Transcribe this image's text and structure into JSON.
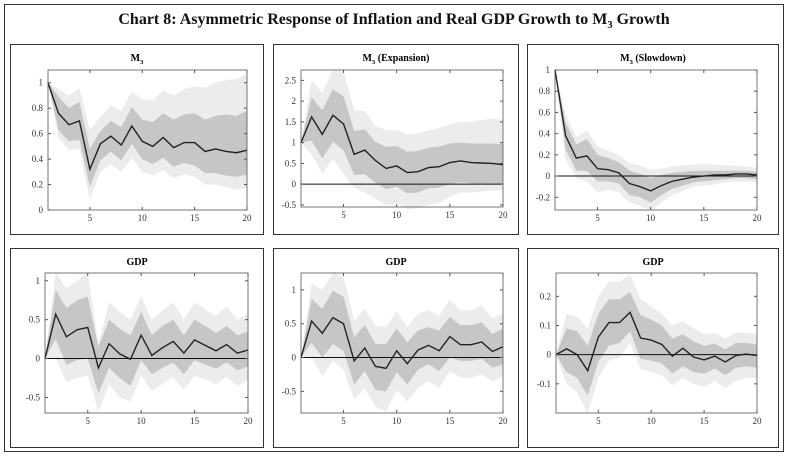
{
  "title": {
    "main": "Chart 8: Asymmetric Response of Inflation and Real GDP Growth to M",
    "sub": "3",
    "rest": " Growth"
  },
  "colors": {
    "outer_band": "#ececec",
    "inner_band": "#c6c6c8",
    "median": "#222222",
    "zero_line": "#111111"
  },
  "chart_data": [
    {
      "type": "line",
      "title": {
        "main": "M",
        "sub": "3",
        "rest": ""
      },
      "x": [
        1,
        2,
        3,
        4,
        5,
        6,
        7,
        8,
        9,
        10,
        11,
        12,
        13,
        14,
        15,
        16,
        17,
        18,
        19,
        20
      ],
      "xlim": [
        1,
        20
      ],
      "xticks": [
        5,
        10,
        15,
        20
      ],
      "ylim": [
        0,
        1.1
      ],
      "yticks": [
        0,
        0.2,
        0.4,
        0.6,
        0.8,
        1
      ],
      "zero_line": false,
      "median": [
        1,
        0.76,
        0.67,
        0.7,
        0.32,
        0.52,
        0.58,
        0.51,
        0.66,
        0.54,
        0.5,
        0.57,
        0.49,
        0.53,
        0.53,
        0.46,
        0.48,
        0.46,
        0.45,
        0.47
      ],
      "inner_hi": [
        1,
        0.89,
        0.8,
        0.85,
        0.48,
        0.62,
        0.7,
        0.65,
        0.81,
        0.71,
        0.69,
        0.76,
        0.71,
        0.75,
        0.76,
        0.71,
        0.74,
        0.75,
        0.74,
        0.78
      ],
      "inner_lo": [
        1,
        0.63,
        0.54,
        0.55,
        0.18,
        0.39,
        0.46,
        0.39,
        0.52,
        0.4,
        0.36,
        0.41,
        0.34,
        0.37,
        0.35,
        0.29,
        0.29,
        0.27,
        0.26,
        0.28
      ],
      "outer_hi": [
        1,
        0.95,
        0.9,
        0.96,
        0.63,
        0.73,
        0.82,
        0.78,
        0.93,
        0.87,
        0.86,
        0.94,
        0.9,
        0.95,
        0.97,
        0.96,
        1.0,
        1.02,
        1.03,
        1.07
      ],
      "outer_lo": [
        1,
        0.57,
        0.47,
        0.48,
        0.08,
        0.3,
        0.36,
        0.3,
        0.41,
        0.3,
        0.27,
        0.31,
        0.25,
        0.28,
        0.26,
        0.2,
        0.2,
        0.18,
        0.16,
        0.17
      ]
    },
    {
      "type": "line",
      "title": {
        "main": "M",
        "sub": "3",
        "rest": " (Expansion)"
      },
      "x": [
        1,
        2,
        3,
        4,
        5,
        6,
        7,
        8,
        9,
        10,
        11,
        12,
        13,
        14,
        15,
        16,
        17,
        18,
        19,
        20
      ],
      "xlim": [
        1,
        20
      ],
      "xticks": [
        5,
        10,
        15,
        20
      ],
      "ylim": [
        -0.55,
        2.75
      ],
      "yticks": [
        -0.5,
        0,
        0.5,
        1,
        1.5,
        2,
        2.5
      ],
      "zero_line": true,
      "median": [
        1,
        1.62,
        1.2,
        1.66,
        1.45,
        0.72,
        0.82,
        0.57,
        0.38,
        0.44,
        0.28,
        0.3,
        0.4,
        0.42,
        0.52,
        0.56,
        0.52,
        0.51,
        0.5,
        0.47
      ],
      "inner_hi": [
        1,
        2.1,
        1.78,
        2.28,
        2.12,
        1.28,
        1.32,
        1.02,
        0.9,
        0.92,
        0.78,
        0.8,
        0.88,
        0.9,
        0.98,
        1.0,
        0.98,
        0.98,
        0.98,
        0.97
      ],
      "inner_lo": [
        1,
        1.05,
        0.62,
        1.02,
        0.82,
        0.22,
        0.24,
        0.04,
        -0.12,
        -0.06,
        -0.22,
        -0.2,
        -0.1,
        -0.08,
        0,
        0.05,
        0.02,
        0.01,
        0.02,
        0
      ],
      "outer_hi": [
        1,
        2.5,
        2.2,
        2.75,
        2.7,
        1.8,
        1.75,
        1.4,
        1.3,
        1.3,
        1.2,
        1.22,
        1.3,
        1.35,
        1.45,
        1.5,
        1.5,
        1.55,
        1.58,
        1.55
      ],
      "outer_lo": [
        1,
        0.72,
        0.25,
        0.62,
        0.25,
        -0.1,
        -0.2,
        -0.35,
        -0.52,
        -0.45,
        -0.6,
        -0.58,
        -0.5,
        -0.45,
        -0.3,
        -0.2,
        -0.2,
        -0.18,
        -0.15,
        -0.15
      ]
    },
    {
      "type": "line",
      "title": {
        "main": "M",
        "sub": "3",
        "rest": " (Slowdown)"
      },
      "x": [
        1,
        2,
        3,
        4,
        5,
        6,
        7,
        8,
        9,
        10,
        11,
        12,
        13,
        14,
        15,
        16,
        17,
        18,
        19,
        20
      ],
      "xlim": [
        1,
        20
      ],
      "xticks": [
        5,
        10,
        15,
        20
      ],
      "ylim": [
        -0.32,
        1.0
      ],
      "yticks": [
        -0.2,
        0,
        0.2,
        0.4,
        0.6,
        0.8,
        1
      ],
      "zero_line": true,
      "median": [
        1,
        0.38,
        0.17,
        0.19,
        0.07,
        0.06,
        0.03,
        -0.07,
        -0.1,
        -0.14,
        -0.09,
        -0.05,
        -0.03,
        -0.01,
        0,
        0.01,
        0.01,
        0.02,
        0.02,
        0.01
      ],
      "inner_hi": [
        1,
        0.5,
        0.3,
        0.35,
        0.2,
        0.17,
        0.13,
        0.05,
        0.02,
        -0.02,
        0.01,
        0.03,
        0.04,
        0.05,
        0.05,
        0.05,
        0.05,
        0.05,
        0.05,
        0.04
      ],
      "inner_lo": [
        1,
        0.25,
        0.05,
        0.05,
        -0.05,
        -0.05,
        -0.07,
        -0.18,
        -0.2,
        -0.25,
        -0.18,
        -0.12,
        -0.09,
        -0.06,
        -0.05,
        -0.04,
        -0.03,
        -0.02,
        -0.02,
        -0.03
      ],
      "outer_hi": [
        1,
        0.58,
        0.37,
        0.43,
        0.28,
        0.24,
        0.2,
        0.12,
        0.1,
        0.06,
        0.07,
        0.09,
        0.1,
        0.11,
        0.11,
        0.11,
        0.1,
        0.1,
        0.09,
        0.08
      ],
      "outer_lo": [
        1,
        0.15,
        -0.02,
        -0.05,
        -0.15,
        -0.13,
        -0.15,
        -0.25,
        -0.28,
        -0.32,
        -0.25,
        -0.18,
        -0.14,
        -0.1,
        -0.09,
        -0.08,
        -0.06,
        -0.05,
        -0.05,
        -0.06
      ]
    },
    {
      "type": "line",
      "title": {
        "main": "GDP",
        "sub": "",
        "rest": ""
      },
      "x": [
        1,
        2,
        3,
        4,
        5,
        6,
        7,
        8,
        9,
        10,
        11,
        12,
        13,
        14,
        15,
        16,
        17,
        18,
        19,
        20
      ],
      "xlim": [
        1,
        20
      ],
      "xticks": [
        5,
        10,
        15,
        20
      ],
      "ylim": [
        -0.7,
        1.1
      ],
      "yticks": [
        -0.5,
        0,
        0.5,
        1
      ],
      "zero_line": true,
      "median": [
        0,
        0.57,
        0.28,
        0.37,
        0.4,
        -0.12,
        0.19,
        0.06,
        -0.01,
        0.3,
        0.04,
        0.14,
        0.22,
        0.07,
        0.24,
        0.17,
        0.1,
        0.18,
        0.07,
        0.11
      ],
      "inner_hi": [
        0,
        0.88,
        0.65,
        0.75,
        0.8,
        0.15,
        0.5,
        0.38,
        0.3,
        0.6,
        0.3,
        0.42,
        0.5,
        0.3,
        0.5,
        0.42,
        0.33,
        0.42,
        0.3,
        0.35
      ],
      "inner_lo": [
        0,
        0.25,
        -0.08,
        -0.02,
        0,
        -0.45,
        -0.12,
        -0.25,
        -0.35,
        -0.02,
        -0.2,
        -0.12,
        -0.05,
        -0.2,
        -0.02,
        -0.08,
        -0.13,
        -0.05,
        -0.15,
        -0.1
      ],
      "outer_hi": [
        0,
        1.1,
        0.9,
        1.0,
        1.1,
        0.2,
        0.72,
        0.6,
        0.5,
        0.8,
        0.5,
        0.62,
        0.72,
        0.5,
        0.72,
        0.63,
        0.55,
        0.67,
        0.5,
        0.58
      ],
      "outer_lo": [
        0,
        0,
        -0.3,
        -0.25,
        -0.22,
        -0.68,
        -0.33,
        -0.5,
        -0.55,
        -0.22,
        -0.42,
        -0.32,
        -0.24,
        -0.4,
        -0.22,
        -0.27,
        -0.33,
        -0.23,
        -0.35,
        -0.28
      ]
    },
    {
      "type": "line",
      "title": {
        "main": "GDP",
        "sub": "",
        "rest": ""
      },
      "x": [
        1,
        2,
        3,
        4,
        5,
        6,
        7,
        8,
        9,
        10,
        11,
        12,
        13,
        14,
        15,
        16,
        17,
        18,
        19,
        20
      ],
      "xlim": [
        1,
        20
      ],
      "xticks": [
        5,
        10,
        15,
        20
      ],
      "ylim": [
        -0.82,
        1.25
      ],
      "yticks": [
        -0.5,
        0,
        0.5,
        1
      ],
      "zero_line": true,
      "median": [
        0,
        0.54,
        0.36,
        0.59,
        0.5,
        -0.05,
        0.14,
        -0.13,
        -0.16,
        0.1,
        -0.09,
        0.11,
        0.18,
        0.1,
        0.31,
        0.19,
        0.19,
        0.23,
        0.09,
        0.16
      ],
      "inner_hi": [
        0,
        0.87,
        0.72,
        0.99,
        0.9,
        0.3,
        0.48,
        0.2,
        0.2,
        0.43,
        0.22,
        0.4,
        0.45,
        0.4,
        0.6,
        0.48,
        0.48,
        0.52,
        0.35,
        0.43
      ],
      "inner_lo": [
        0,
        0.22,
        0,
        0.2,
        0.1,
        -0.4,
        -0.2,
        -0.48,
        -0.5,
        -0.22,
        -0.4,
        -0.18,
        -0.1,
        -0.2,
        0,
        -0.05,
        -0.05,
        -0.02,
        -0.15,
        -0.1
      ],
      "outer_hi": [
        0,
        1.1,
        1.0,
        1.25,
        1.2,
        0.55,
        0.72,
        0.47,
        0.45,
        0.68,
        0.45,
        0.65,
        0.7,
        0.62,
        0.85,
        0.7,
        0.7,
        0.77,
        0.58,
        0.65
      ],
      "outer_lo": [
        0,
        0,
        -0.27,
        -0.05,
        -0.18,
        -0.62,
        -0.45,
        -0.73,
        -0.8,
        -0.48,
        -0.65,
        -0.45,
        -0.35,
        -0.45,
        -0.2,
        -0.3,
        -0.3,
        -0.25,
        -0.35,
        -0.28
      ]
    },
    {
      "type": "line",
      "title": {
        "main": "GDP",
        "sub": "",
        "rest": ""
      },
      "x": [
        1,
        2,
        3,
        4,
        5,
        6,
        7,
        8,
        9,
        10,
        11,
        12,
        13,
        14,
        15,
        16,
        17,
        18,
        19,
        20
      ],
      "xlim": [
        1,
        20
      ],
      "xticks": [
        5,
        10,
        15,
        20
      ],
      "ylim": [
        -0.2,
        0.28
      ],
      "yticks": [
        -0.1,
        0,
        0.1,
        0.2
      ],
      "zero_line": true,
      "median": [
        0,
        0.02,
        0,
        -0.055,
        0.06,
        0.11,
        0.11,
        0.145,
        0.057,
        0.05,
        0.035,
        -0.005,
        0.022,
        -0.008,
        -0.018,
        -0.005,
        -0.025,
        -0.003,
        0.002,
        -0.003
      ],
      "inner_hi": [
        0,
        0.09,
        0.08,
        0.03,
        0.14,
        0.19,
        0.19,
        0.215,
        0.135,
        0.12,
        0.1,
        0.055,
        0.07,
        0.045,
        0.03,
        0.038,
        0.018,
        0.04,
        0.04,
        0.035
      ],
      "inner_lo": [
        0,
        -0.06,
        -0.08,
        -0.14,
        -0.025,
        0.03,
        0.04,
        0.08,
        -0.015,
        -0.02,
        -0.03,
        -0.065,
        -0.04,
        -0.06,
        -0.065,
        -0.048,
        -0.07,
        -0.045,
        -0.04,
        -0.045
      ],
      "outer_hi": [
        0,
        0.14,
        0.13,
        0.09,
        0.2,
        0.25,
        0.25,
        0.275,
        0.19,
        0.165,
        0.14,
        0.1,
        0.115,
        0.09,
        0.07,
        0.075,
        0.055,
        0.075,
        0.075,
        0.07
      ],
      "outer_lo": [
        0,
        -0.1,
        -0.13,
        -0.2,
        -0.08,
        -0.02,
        -0.01,
        0.04,
        -0.05,
        -0.06,
        -0.07,
        -0.105,
        -0.08,
        -0.1,
        -0.11,
        -0.09,
        -0.115,
        -0.09,
        -0.08,
        -0.08
      ]
    }
  ]
}
